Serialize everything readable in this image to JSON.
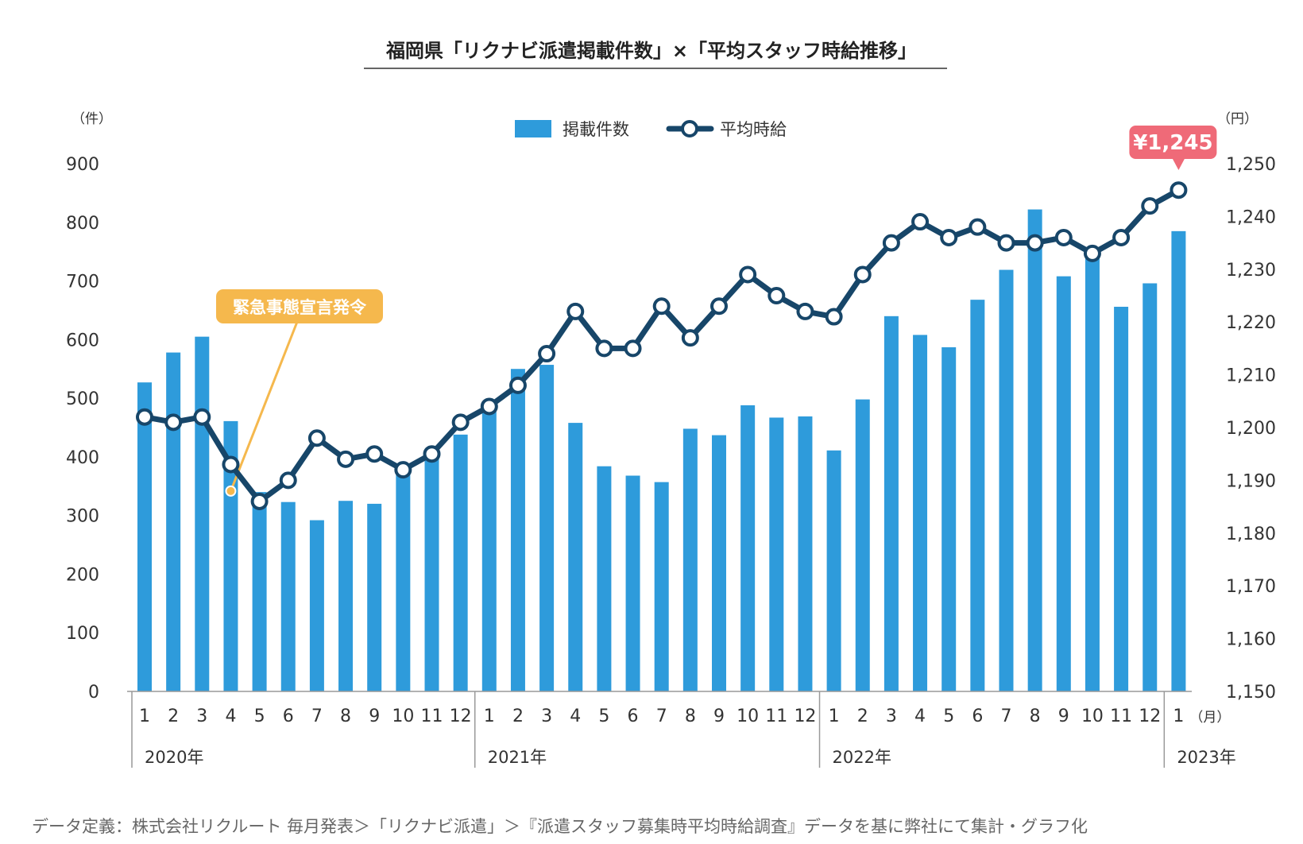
{
  "chart_data": {
    "type": "bar+line",
    "title": "福岡県「リクナビ派遣掲載件数」×「平均スタッフ時給推移」",
    "left_unit": "（件）",
    "right_unit": "（円）",
    "month_unit": "（月）",
    "legend": {
      "bar_label": "掲載件数",
      "line_label": "平均時給"
    },
    "left_axis": {
      "min": 0,
      "max": 900,
      "ticks": [
        "0",
        "100",
        "200",
        "300",
        "400",
        "500",
        "600",
        "700",
        "800",
        "900"
      ]
    },
    "right_axis": {
      "min": 1150,
      "max": 1250,
      "ticks": [
        "1,150",
        "1,160",
        "1,170",
        "1,180",
        "1,190",
        "1,200",
        "1,210",
        "1,220",
        "1,230",
        "1,240",
        "1,250"
      ]
    },
    "years": [
      {
        "label": "2020年",
        "months": 12
      },
      {
        "label": "2021年",
        "months": 12
      },
      {
        "label": "2022年",
        "months": 12
      },
      {
        "label": "2023年",
        "months": 1
      }
    ],
    "months": [
      "1",
      "2",
      "3",
      "4",
      "5",
      "6",
      "7",
      "8",
      "9",
      "10",
      "11",
      "12",
      "1",
      "2",
      "3",
      "4",
      "5",
      "6",
      "7",
      "8",
      "9",
      "10",
      "11",
      "12",
      "1",
      "2",
      "3",
      "4",
      "5",
      "6",
      "7",
      "8",
      "9",
      "10",
      "11",
      "12",
      "1"
    ],
    "series": [
      {
        "name": "掲載件数",
        "color": "#2e9bdb",
        "values": [
          527,
          578,
          605,
          461,
          340,
          323,
          292,
          325,
          320,
          370,
          398,
          438,
          478,
          550,
          557,
          458,
          384,
          368,
          357,
          448,
          437,
          488,
          467,
          469,
          411,
          498,
          640,
          608,
          587,
          668,
          719,
          822,
          708,
          740,
          656,
          696,
          785
        ]
      },
      {
        "name": "平均時給",
        "color": "#174669",
        "values": [
          1202,
          1201,
          1202,
          1193,
          1186,
          1190,
          1198,
          1194,
          1195,
          1192,
          1195,
          1201,
          1204,
          1208,
          1214,
          1222,
          1215,
          1215,
          1223,
          1217,
          1223,
          1229,
          1225,
          1222,
          1221,
          1229,
          1235,
          1239,
          1236,
          1238,
          1235,
          1235,
          1236,
          1233,
          1236,
          1242,
          1245
        ]
      }
    ],
    "annotations": [
      {
        "text": "緊急事態宣言発令",
        "index": 3,
        "color": "#f5b84d"
      },
      {
        "text": "¥1,245",
        "index": 36,
        "color": "#ef6a78"
      }
    ]
  },
  "footnote": "データ定義：株式会社リクルート 毎月発表＞「リクナビ派遣」＞『派遣スタッフ募集時平均時給調査』データを基に弊社にて集計・グラフ化"
}
